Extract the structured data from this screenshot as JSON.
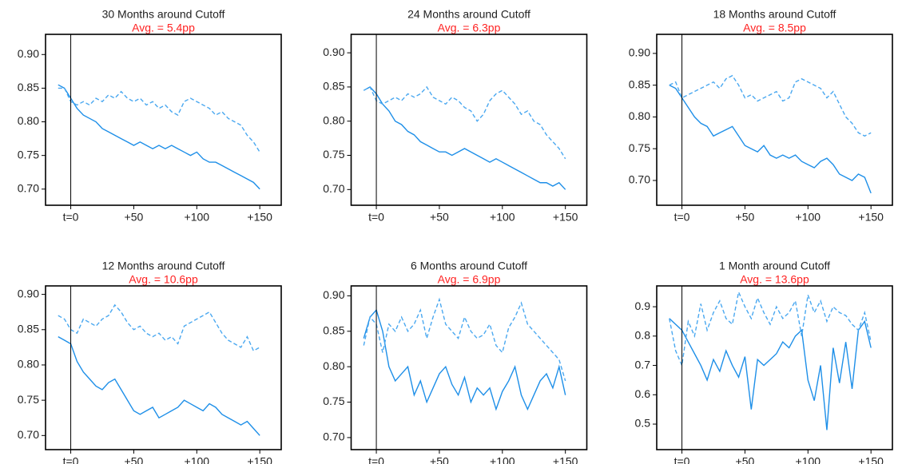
{
  "chart_data": [
    {
      "type": "line",
      "title": "30  Months around Cutoff",
      "subtitle": "Avg. =  5.4pp",
      "subtitle_color": "#ff2222",
      "x": [
        -10,
        -5,
        0,
        5,
        10,
        15,
        20,
        25,
        30,
        35,
        40,
        45,
        50,
        55,
        60,
        65,
        70,
        75,
        80,
        85,
        90,
        95,
        100,
        105,
        110,
        115,
        120,
        125,
        130,
        135,
        140,
        145,
        150
      ],
      "series": [
        {
          "color": "#1e8fe8",
          "dash": "solid",
          "values": [
            0.855,
            0.85,
            0.835,
            0.82,
            0.81,
            0.805,
            0.8,
            0.79,
            0.785,
            0.78,
            0.775,
            0.77,
            0.765,
            0.77,
            0.765,
            0.76,
            0.765,
            0.76,
            0.765,
            0.76,
            0.755,
            0.75,
            0.755,
            0.745,
            0.74,
            0.74,
            0.735,
            0.73,
            0.725,
            0.72,
            0.715,
            0.71,
            0.7
          ]
        },
        {
          "color": "#4aa8f0",
          "dash": "dashed",
          "values": [
            0.85,
            0.85,
            0.83,
            0.825,
            0.83,
            0.825,
            0.835,
            0.83,
            0.84,
            0.835,
            0.845,
            0.835,
            0.83,
            0.835,
            0.825,
            0.83,
            0.82,
            0.825,
            0.815,
            0.81,
            0.83,
            0.835,
            0.83,
            0.825,
            0.82,
            0.81,
            0.815,
            0.805,
            0.8,
            0.795,
            0.78,
            0.77,
            0.755
          ]
        }
      ],
      "vline": 0,
      "xlim": [
        -20,
        167
      ],
      "ylim": [
        0.676,
        0.93
      ],
      "xticks": [
        {
          "value": 0,
          "label": "t=0"
        },
        {
          "value": 50,
          "label": "+50"
        },
        {
          "value": 100,
          "label": "+100"
        },
        {
          "value": 150,
          "label": "+150"
        }
      ],
      "yticks": [
        {
          "value": 0.7,
          "label": "0.70"
        },
        0.75,
        {
          "value": 0.8,
          "label": "0.80"
        },
        0.85,
        {
          "value": 0.9,
          "label": "0.90"
        }
      ]
    },
    {
      "type": "line",
      "title": "24  Months around Cutoff",
      "subtitle": "Avg. =  6.3pp",
      "subtitle_color": "#ff2222",
      "x": [
        -10,
        -5,
        0,
        5,
        10,
        15,
        20,
        25,
        30,
        35,
        40,
        45,
        50,
        55,
        60,
        65,
        70,
        75,
        80,
        85,
        90,
        95,
        100,
        105,
        110,
        115,
        120,
        125,
        130,
        135,
        140,
        145,
        150
      ],
      "series": [
        {
          "color": "#1e8fe8",
          "dash": "solid",
          "values": [
            0.845,
            0.85,
            0.84,
            0.825,
            0.815,
            0.8,
            0.795,
            0.785,
            0.78,
            0.77,
            0.765,
            0.76,
            0.755,
            0.755,
            0.75,
            0.755,
            0.76,
            0.755,
            0.75,
            0.745,
            0.74,
            0.745,
            0.74,
            0.735,
            0.73,
            0.725,
            0.72,
            0.715,
            0.71,
            0.71,
            0.705,
            0.71,
            0.7
          ]
        },
        {
          "color": "#4aa8f0",
          "dash": "dashed",
          "values": [
            0.845,
            0.85,
            0.83,
            0.825,
            0.83,
            0.835,
            0.83,
            0.84,
            0.835,
            0.84,
            0.85,
            0.835,
            0.83,
            0.825,
            0.835,
            0.83,
            0.82,
            0.815,
            0.8,
            0.81,
            0.83,
            0.84,
            0.845,
            0.835,
            0.825,
            0.81,
            0.815,
            0.8,
            0.795,
            0.78,
            0.77,
            0.76,
            0.745
          ]
        }
      ],
      "vline": 0,
      "xlim": [
        -20,
        167
      ],
      "ylim": [
        0.677,
        0.927
      ],
      "xticks": [
        {
          "value": 0,
          "label": "t=0"
        },
        {
          "value": 50,
          "label": "+50"
        },
        {
          "value": 100,
          "label": "+100"
        },
        {
          "value": 150,
          "label": "+150"
        }
      ],
      "yticks": [
        {
          "value": 0.7,
          "label": "0.70"
        },
        0.75,
        {
          "value": 0.8,
          "label": "0.80"
        },
        0.85,
        {
          "value": 0.9,
          "label": "0.90"
        }
      ]
    },
    {
      "type": "line",
      "title": "18  Months around Cutoff",
      "subtitle": "Avg. =  8.5pp",
      "subtitle_color": "#ff2222",
      "x": [
        -10,
        -5,
        0,
        5,
        10,
        15,
        20,
        25,
        30,
        35,
        40,
        45,
        50,
        55,
        60,
        65,
        70,
        75,
        80,
        85,
        90,
        95,
        100,
        105,
        110,
        115,
        120,
        125,
        130,
        135,
        140,
        145,
        150
      ],
      "series": [
        {
          "color": "#1e8fe8",
          "dash": "solid",
          "values": [
            0.85,
            0.845,
            0.83,
            0.815,
            0.8,
            0.79,
            0.785,
            0.77,
            0.775,
            0.78,
            0.785,
            0.77,
            0.755,
            0.75,
            0.745,
            0.755,
            0.74,
            0.735,
            0.74,
            0.735,
            0.74,
            0.73,
            0.725,
            0.72,
            0.73,
            0.735,
            0.725,
            0.71,
            0.705,
            0.7,
            0.71,
            0.705,
            0.68
          ]
        },
        {
          "color": "#4aa8f0",
          "dash": "dashed",
          "values": [
            0.85,
            0.855,
            0.83,
            0.835,
            0.84,
            0.845,
            0.85,
            0.855,
            0.845,
            0.86,
            0.865,
            0.85,
            0.83,
            0.835,
            0.825,
            0.83,
            0.835,
            0.84,
            0.825,
            0.83,
            0.855,
            0.86,
            0.855,
            0.85,
            0.845,
            0.83,
            0.84,
            0.82,
            0.8,
            0.79,
            0.775,
            0.77,
            0.775
          ]
        }
      ],
      "vline": 0,
      "xlim": [
        -20,
        167
      ],
      "ylim": [
        0.661,
        0.93
      ],
      "xticks": [
        {
          "value": 0,
          "label": "t=0"
        },
        {
          "value": 50,
          "label": "+50"
        },
        {
          "value": 100,
          "label": "+100"
        },
        {
          "value": 150,
          "label": "+150"
        }
      ],
      "yticks": [
        {
          "value": 0.7,
          "label": "0.70"
        },
        0.75,
        {
          "value": 0.8,
          "label": "0.80"
        },
        0.85,
        {
          "value": 0.9,
          "label": "0.90"
        }
      ]
    },
    {
      "type": "line",
      "title": "12  Months around Cutoff",
      "subtitle": "Avg. =  10.6pp",
      "subtitle_color": "#ff2222",
      "x": [
        -10,
        -5,
        0,
        5,
        10,
        15,
        20,
        25,
        30,
        35,
        40,
        45,
        50,
        55,
        60,
        65,
        70,
        75,
        80,
        85,
        90,
        95,
        100,
        105,
        110,
        115,
        120,
        125,
        130,
        135,
        140,
        145,
        150
      ],
      "series": [
        {
          "color": "#1e8fe8",
          "dash": "solid",
          "values": [
            0.84,
            0.835,
            0.83,
            0.805,
            0.79,
            0.78,
            0.77,
            0.765,
            0.775,
            0.78,
            0.765,
            0.75,
            0.735,
            0.73,
            0.735,
            0.74,
            0.725,
            0.73,
            0.735,
            0.74,
            0.75,
            0.745,
            0.74,
            0.735,
            0.745,
            0.74,
            0.73,
            0.725,
            0.72,
            0.715,
            0.72,
            0.71,
            0.7
          ]
        },
        {
          "color": "#4aa8f0",
          "dash": "dashed",
          "values": [
            0.87,
            0.865,
            0.85,
            0.845,
            0.865,
            0.86,
            0.855,
            0.865,
            0.87,
            0.885,
            0.875,
            0.86,
            0.85,
            0.855,
            0.845,
            0.84,
            0.845,
            0.835,
            0.84,
            0.83,
            0.855,
            0.86,
            0.865,
            0.87,
            0.875,
            0.86,
            0.845,
            0.835,
            0.83,
            0.825,
            0.84,
            0.82,
            0.825
          ]
        }
      ],
      "vline": 0,
      "xlim": [
        -20,
        167
      ],
      "ylim": [
        0.68,
        0.912
      ],
      "xticks": [
        {
          "value": 0,
          "label": "t=0"
        },
        {
          "value": 50,
          "label": "+50"
        },
        {
          "value": 100,
          "label": "+100"
        },
        {
          "value": 150,
          "label": "+150"
        }
      ],
      "yticks": [
        {
          "value": 0.7,
          "label": "0.70"
        },
        0.75,
        {
          "value": 0.8,
          "label": "0.80"
        },
        0.85,
        {
          "value": 0.9,
          "label": "0.90"
        }
      ]
    },
    {
      "type": "line",
      "title": "6  Months around Cutoff",
      "subtitle": "Avg. =  6.9pp",
      "subtitle_color": "#ff2222",
      "x": [
        -10,
        -5,
        0,
        5,
        10,
        15,
        20,
        25,
        30,
        35,
        40,
        45,
        50,
        55,
        60,
        65,
        70,
        75,
        80,
        85,
        90,
        95,
        100,
        105,
        110,
        115,
        120,
        125,
        130,
        135,
        140,
        145,
        150
      ],
      "series": [
        {
          "color": "#1e8fe8",
          "dash": "solid",
          "values": [
            0.84,
            0.87,
            0.88,
            0.85,
            0.8,
            0.78,
            0.79,
            0.8,
            0.76,
            0.78,
            0.75,
            0.77,
            0.79,
            0.8,
            0.775,
            0.76,
            0.785,
            0.75,
            0.77,
            0.76,
            0.77,
            0.74,
            0.765,
            0.78,
            0.8,
            0.76,
            0.74,
            0.76,
            0.78,
            0.79,
            0.77,
            0.8,
            0.76
          ]
        },
        {
          "color": "#4aa8f0",
          "dash": "dashed",
          "values": [
            0.83,
            0.87,
            0.86,
            0.82,
            0.86,
            0.85,
            0.87,
            0.85,
            0.86,
            0.88,
            0.84,
            0.87,
            0.895,
            0.86,
            0.85,
            0.84,
            0.87,
            0.85,
            0.84,
            0.845,
            0.86,
            0.83,
            0.82,
            0.855,
            0.87,
            0.89,
            0.86,
            0.85,
            0.84,
            0.83,
            0.82,
            0.81,
            0.78
          ]
        }
      ],
      "vline": 0,
      "xlim": [
        -20,
        167
      ],
      "ylim": [
        0.683,
        0.914
      ],
      "xticks": [
        {
          "value": 0,
          "label": "t=0"
        },
        {
          "value": 50,
          "label": "+50"
        },
        {
          "value": 100,
          "label": "+100"
        },
        {
          "value": 150,
          "label": "+150"
        }
      ],
      "yticks": [
        {
          "value": 0.7,
          "label": "0.70"
        },
        0.75,
        {
          "value": 0.8,
          "label": "0.80"
        },
        0.85,
        {
          "value": 0.9,
          "label": "0.90"
        }
      ]
    },
    {
      "type": "line",
      "title": "1  Month around Cutoff",
      "subtitle": "Avg. =  13.6pp",
      "subtitle_color": "#ff2222",
      "x": [
        -10,
        -5,
        0,
        5,
        10,
        15,
        20,
        25,
        30,
        35,
        40,
        45,
        50,
        55,
        60,
        65,
        70,
        75,
        80,
        85,
        90,
        95,
        100,
        105,
        110,
        115,
        120,
        125,
        130,
        135,
        140,
        145,
        150
      ],
      "series": [
        {
          "color": "#1e8fe8",
          "dash": "solid",
          "values": [
            0.86,
            0.84,
            0.82,
            0.78,
            0.74,
            0.7,
            0.65,
            0.72,
            0.68,
            0.75,
            0.7,
            0.66,
            0.73,
            0.55,
            0.72,
            0.7,
            0.72,
            0.74,
            0.78,
            0.76,
            0.8,
            0.82,
            0.65,
            0.58,
            0.7,
            0.48,
            0.76,
            0.64,
            0.78,
            0.62,
            0.82,
            0.85,
            0.76
          ]
        },
        {
          "color": "#4aa8f0",
          "dash": "dashed",
          "values": [
            0.86,
            0.75,
            0.7,
            0.85,
            0.8,
            0.91,
            0.82,
            0.88,
            0.92,
            0.86,
            0.84,
            0.95,
            0.9,
            0.86,
            0.93,
            0.88,
            0.84,
            0.9,
            0.86,
            0.88,
            0.92,
            0.8,
            0.94,
            0.88,
            0.92,
            0.85,
            0.9,
            0.88,
            0.87,
            0.84,
            0.82,
            0.88,
            0.78
          ]
        }
      ],
      "vline": 0,
      "xlim": [
        -20,
        167
      ],
      "ylim": [
        0.413,
        0.971
      ],
      "xticks": [
        {
          "value": 0,
          "label": "t=0"
        },
        {
          "value": 50,
          "label": "+50"
        },
        {
          "value": 100,
          "label": "+100"
        },
        {
          "value": 150,
          "label": "+150"
        }
      ],
      "yticks": [
        0.5,
        0.6,
        0.7,
        0.8,
        0.9
      ]
    }
  ]
}
